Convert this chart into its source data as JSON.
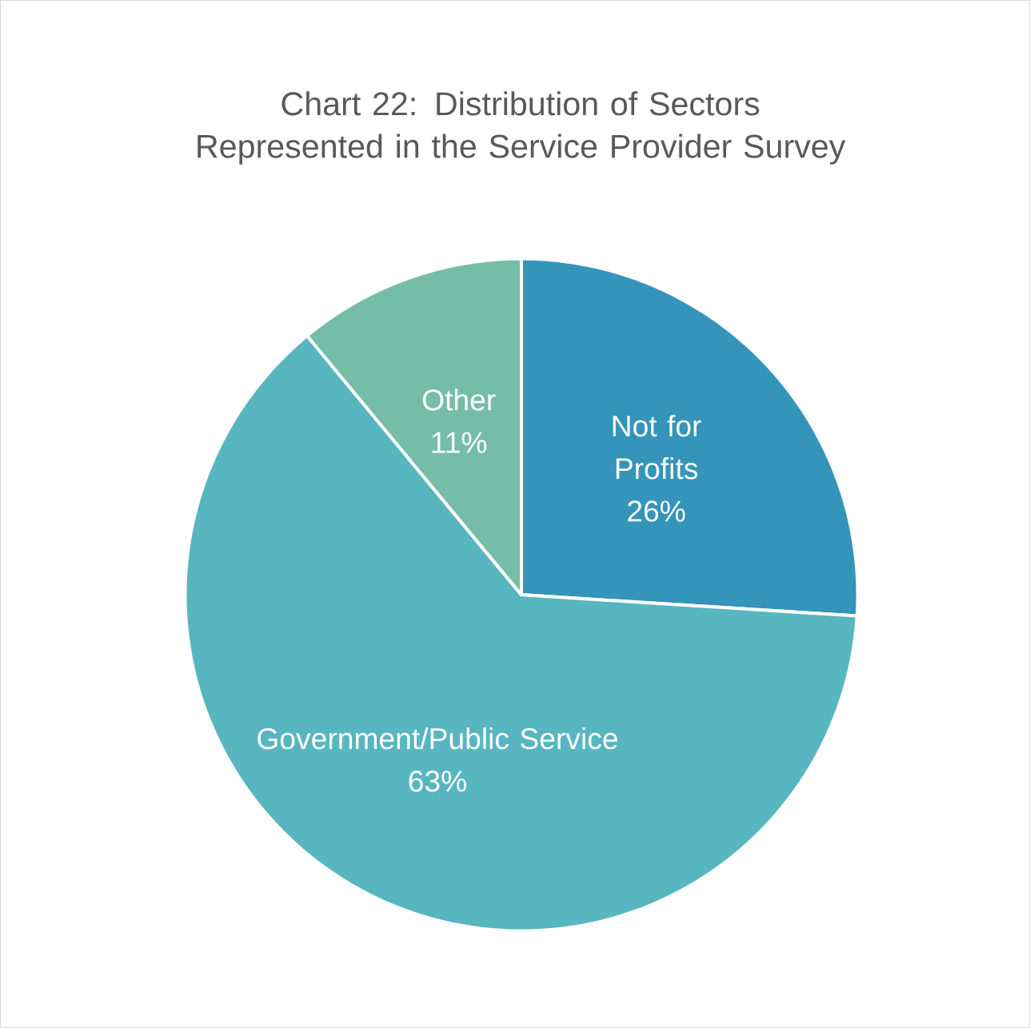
{
  "chart_data": {
    "type": "pie",
    "title": "Chart 22: Distribution of Sectors Represented in the Service Provider Survey",
    "categories": [
      "Not for Profits",
      "Government/Public Service",
      "Other"
    ],
    "values": [
      26,
      63,
      11
    ],
    "colors": [
      "#3494ba",
      "#58b6c0",
      "#75bda7"
    ],
    "value_labels": [
      "26%",
      "63%",
      "11%"
    ]
  }
}
